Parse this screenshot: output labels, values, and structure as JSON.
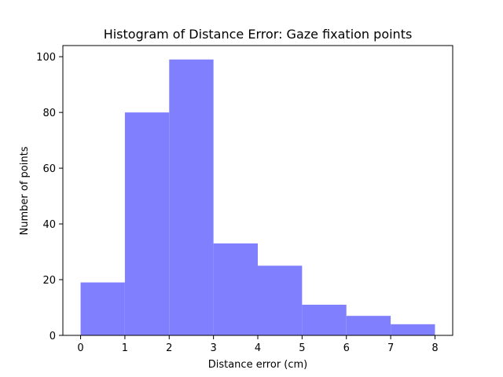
{
  "chart_data": {
    "type": "bar",
    "title": "Histogram of Distance Error: Gaze fixation points",
    "xlabel": "Distance error (cm)",
    "ylabel": "Number of points",
    "bins": [
      {
        "start": 0,
        "end": 1,
        "count": 19
      },
      {
        "start": 1,
        "end": 2,
        "count": 80
      },
      {
        "start": 2,
        "end": 3,
        "count": 99
      },
      {
        "start": 3,
        "end": 4,
        "count": 33
      },
      {
        "start": 4,
        "end": 5,
        "count": 25
      },
      {
        "start": 5,
        "end": 6,
        "count": 11
      },
      {
        "start": 6,
        "end": 7,
        "count": 7
      },
      {
        "start": 7,
        "end": 8,
        "count": 4
      }
    ],
    "xlim": [
      -0.4,
      8.4
    ],
    "ylim": [
      0,
      104
    ],
    "x_ticks": [
      0,
      1,
      2,
      3,
      4,
      5,
      6,
      7,
      8
    ],
    "y_ticks": [
      0,
      20,
      40,
      60,
      80,
      100
    ],
    "bar_color": "#8080ff",
    "grid": false
  }
}
